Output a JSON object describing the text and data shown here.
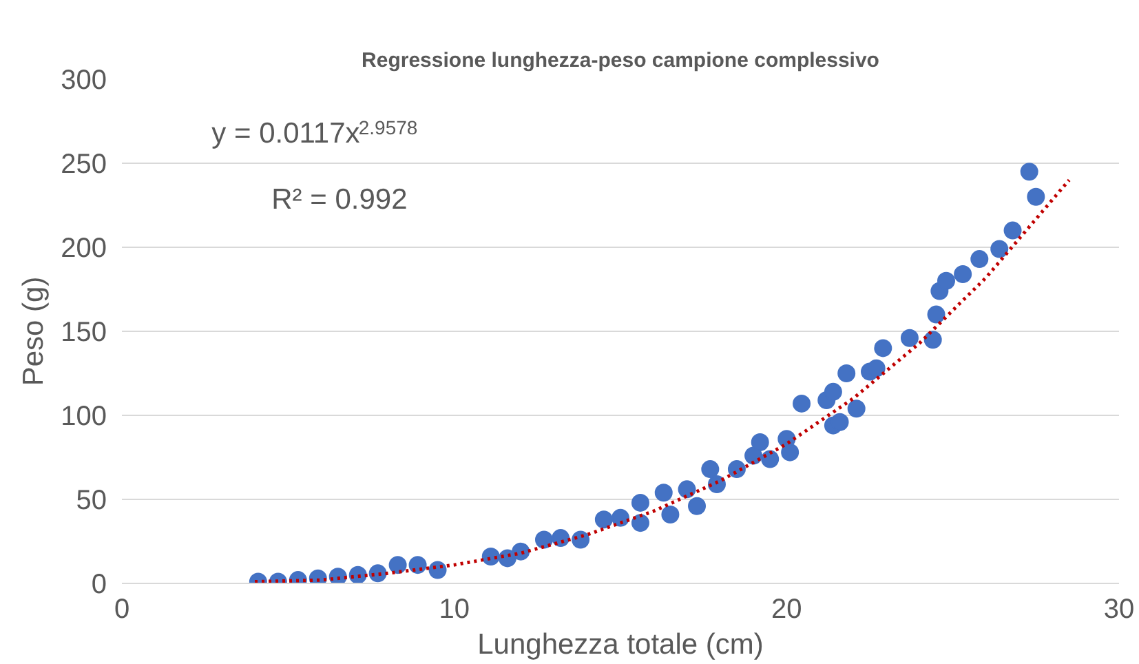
{
  "chart_data": {
    "type": "scatter",
    "title": "Regressione lunghezza-peso campione complessivo",
    "xlabel": "Lunghezza totale (cm)",
    "ylabel": "Peso (g)",
    "xlim": [
      0,
      30
    ],
    "ylim": [
      0,
      300
    ],
    "xticks": [
      0,
      10,
      20,
      30
    ],
    "yticks": [
      0,
      50,
      100,
      150,
      200,
      250,
      300
    ],
    "grid": "y",
    "marker": "circle",
    "annotations": [
      "y = 0.0117x$^{2.9578}$",
      "R² = 0.992"
    ],
    "series": [
      {
        "type": "scatter",
        "color": "#4472c4",
        "x": [
          4.1,
          4.7,
          5.3,
          5.9,
          6.5,
          7.1,
          7.7,
          8.3,
          8.9,
          9.5,
          11.1,
          11.6,
          12.0,
          12.7,
          13.2,
          13.8,
          14.5,
          15.0,
          15.6,
          15.6,
          16.3,
          16.5,
          17.0,
          17.3,
          17.7,
          17.9,
          18.5,
          19.0,
          19.2,
          19.5,
          20.0,
          20.1,
          20.45,
          21.2,
          21.4,
          21.4,
          21.6,
          21.8,
          22.1,
          22.5,
          22.7,
          22.9,
          23.7,
          24.4,
          24.5,
          24.6,
          24.8,
          25.3,
          25.8,
          26.4,
          26.8,
          27.3,
          27.5
        ],
        "values": [
          1,
          1,
          2,
          3,
          4,
          5,
          6,
          11,
          11,
          8,
          16,
          15,
          19,
          26,
          27,
          26,
          38,
          39,
          48,
          36,
          54,
          41,
          56,
          46,
          68,
          59,
          68,
          76,
          84,
          74,
          86,
          78,
          107,
          109,
          114,
          94,
          96,
          125,
          104,
          126,
          128,
          140,
          146,
          145,
          160,
          174,
          180,
          184,
          193,
          199,
          210,
          245,
          230
        ]
      },
      {
        "type": "line",
        "color": "#c00000",
        "line_style": "dotted",
        "marker": "none",
        "x": [
          4,
          6,
          8,
          10,
          12,
          14,
          16,
          18,
          20,
          22,
          24,
          26,
          28.5
        ],
        "values": [
          1,
          2,
          6,
          11,
          18,
          29,
          43,
          61,
          83,
          110,
          143,
          182,
          240
        ]
      }
    ]
  }
}
